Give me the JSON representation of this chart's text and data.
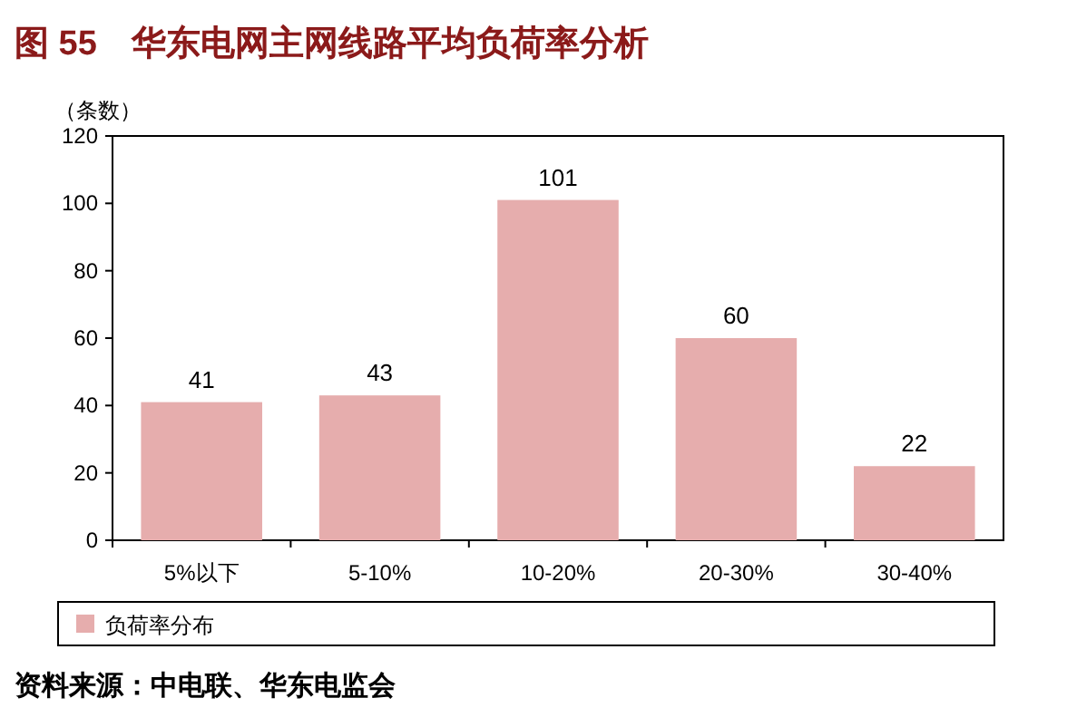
{
  "chart_data": {
    "type": "bar",
    "title": "图 55　华东电网主网线路平均负荷率分析",
    "ylabel": "（条数）",
    "categories": [
      "5%以下",
      "5-10%",
      "10-20%",
      "20-30%",
      "30-40%"
    ],
    "series": [
      {
        "name": "负荷率分布",
        "color": "#e6adad",
        "values": [
          41,
          43,
          101,
          60,
          22
        ]
      }
    ],
    "ylim": [
      0,
      120
    ],
    "yticks": [
      0,
      20,
      40,
      60,
      80,
      100,
      120
    ],
    "data_labels": true,
    "legend": "bottom",
    "annotations": [
      "资料来源：中电联、华东电监会"
    ]
  }
}
